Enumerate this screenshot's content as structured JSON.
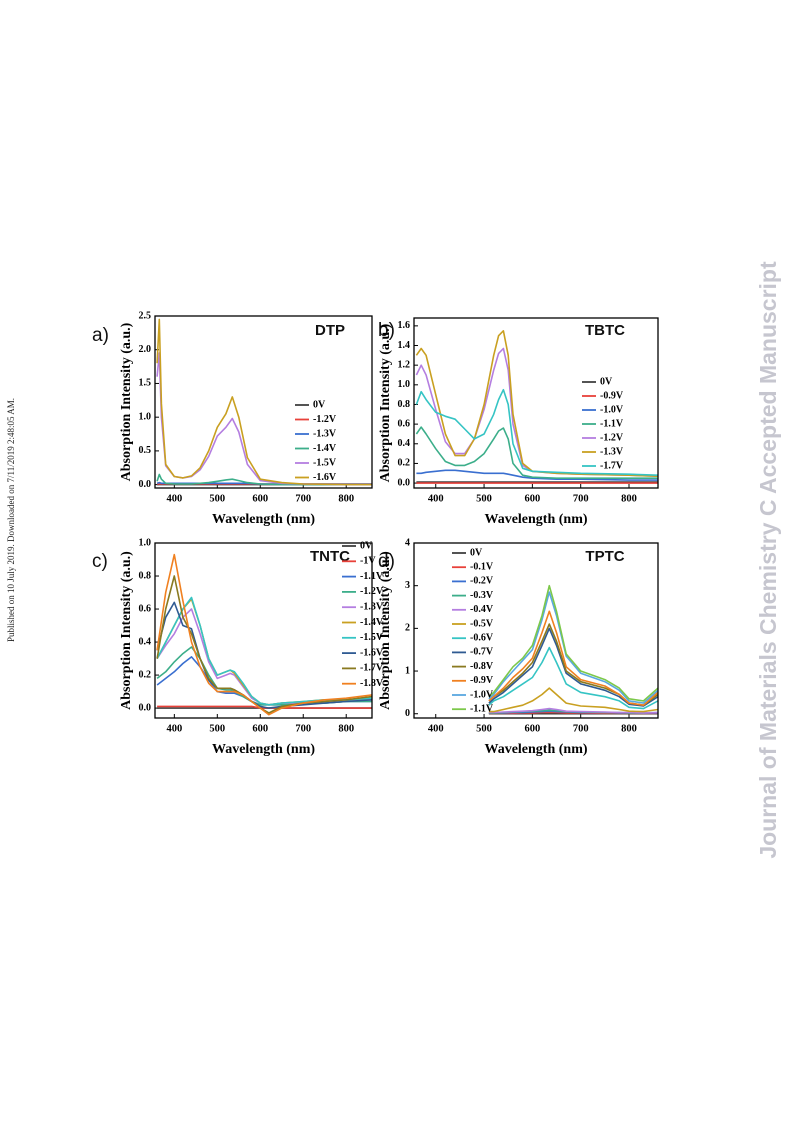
{
  "side_note": "Published on 10 July 2019. Downloaded on 7/11/2019 2:48:05 AM.",
  "watermark": "Journal of Materials Chemistry C Accepted Manuscript",
  "chart_data": [
    {
      "type": "line",
      "label": "a)",
      "title": "DTP",
      "xlabel": "Wavelength (nm)",
      "ylabel": "Absorption Intensity (a.u.)",
      "xlim": [
        355,
        860
      ],
      "xticks": [
        400,
        500,
        600,
        700,
        800
      ],
      "ylim": [
        -0.05,
        2.5
      ],
      "yticks": [
        {
          "value": 0,
          "label": "0.0"
        },
        {
          "value": 0.5,
          "label": "0.5"
        },
        {
          "value": 1,
          "label": "1.0"
        },
        {
          "value": 1.5,
          "label": "1.5"
        },
        {
          "value": 2,
          "label": "2.0"
        },
        {
          "value": 2.5,
          "label": "2.5"
        }
      ],
      "x": [
        360,
        365,
        370,
        380,
        400,
        420,
        440,
        460,
        480,
        500,
        520,
        535,
        550,
        570,
        600,
        650,
        700,
        800,
        860
      ],
      "series": [
        {
          "name": "0V",
          "color": "#404040",
          "values": [
            0,
            0,
            0,
            0,
            0,
            0,
            0,
            0,
            0,
            0,
            0,
            0,
            0,
            0,
            0,
            0,
            0,
            0,
            0
          ]
        },
        {
          "name": "-1.2V",
          "color": "#e8413a",
          "values": [
            0.01,
            0.01,
            0.01,
            0.01,
            0.01,
            0.01,
            0.01,
            0.01,
            0.01,
            0.01,
            0.01,
            0.01,
            0.01,
            0.01,
            0.01,
            0.01,
            0.01,
            0.01,
            0.01
          ]
        },
        {
          "name": "-1.3V",
          "color": "#3a6fd0",
          "values": [
            0.02,
            0.03,
            0.02,
            0.02,
            0.02,
            0.02,
            0.02,
            0.02,
            0.02,
            0.02,
            0.02,
            0.02,
            0.02,
            0.02,
            0.01,
            0.01,
            0.01,
            0.01,
            0.01
          ]
        },
        {
          "name": "-1.4V",
          "color": "#3cae8a",
          "values": [
            0.05,
            0.15,
            0.08,
            0.02,
            0.01,
            0.01,
            0.01,
            0.02,
            0.03,
            0.05,
            0.07,
            0.08,
            0.06,
            0.03,
            0.01,
            0,
            0,
            0,
            0
          ]
        },
        {
          "name": "-1.5V",
          "color": "#b47ee0",
          "values": [
            1.6,
            1.95,
            1.0,
            0.28,
            0.12,
            0.1,
            0.12,
            0.22,
            0.42,
            0.72,
            0.85,
            0.98,
            0.78,
            0.3,
            0.06,
            0.02,
            0.01,
            0,
            0
          ]
        },
        {
          "name": "-1.6V",
          "color": "#c9a021",
          "values": [
            1.8,
            2.45,
            1.2,
            0.3,
            0.12,
            0.1,
            0.13,
            0.25,
            0.5,
            0.85,
            1.05,
            1.3,
            1.0,
            0.4,
            0.08,
            0.03,
            0.01,
            0,
            0
          ]
        }
      ]
    },
    {
      "type": "line",
      "label": "b)",
      "title": "TBTC",
      "xlabel": "Wavelength (nm)",
      "ylabel": "Absorption Intensity (a.u.)",
      "xlim": [
        355,
        860
      ],
      "xticks": [
        400,
        500,
        600,
        700,
        800
      ],
      "ylim": [
        -0.05,
        1.68
      ],
      "yticks": [
        {
          "value": 0,
          "label": "0.0"
        },
        {
          "value": 0.2,
          "label": "0.2"
        },
        {
          "value": 0.4,
          "label": "0.4"
        },
        {
          "value": 0.6,
          "label": "0.6"
        },
        {
          "value": 0.8,
          "label": "0.8"
        },
        {
          "value": 1,
          "label": "1.0"
        },
        {
          "value": 1.2,
          "label": "1.2"
        },
        {
          "value": 1.4,
          "label": "1.4"
        },
        {
          "value": 1.6,
          "label": "1.6"
        }
      ],
      "x": [
        360,
        370,
        380,
        400,
        420,
        440,
        460,
        480,
        500,
        520,
        530,
        540,
        550,
        560,
        580,
        600,
        650,
        700,
        800,
        860
      ],
      "series": [
        {
          "name": "0V",
          "color": "#404040",
          "values": [
            0.01,
            0.01,
            0.01,
            0.01,
            0.01,
            0.01,
            0.01,
            0.01,
            0.01,
            0.01,
            0.01,
            0.01,
            0.01,
            0.01,
            0.01,
            0.01,
            0.01,
            0.01,
            0.01,
            0.01
          ]
        },
        {
          "name": "-0.9V",
          "color": "#e8413a",
          "values": [
            0,
            0,
            0,
            0,
            0,
            0,
            0,
            0,
            0,
            0,
            0,
            0,
            0,
            0,
            0,
            0,
            0,
            0,
            0,
            0
          ]
        },
        {
          "name": "-1.0V",
          "color": "#3a6fd0",
          "values": [
            0.1,
            0.1,
            0.11,
            0.12,
            0.13,
            0.13,
            0.12,
            0.11,
            0.1,
            0.1,
            0.1,
            0.1,
            0.09,
            0.08,
            0.06,
            0.05,
            0.04,
            0.04,
            0.03,
            0.03
          ]
        },
        {
          "name": "-1.1V",
          "color": "#3cae8a",
          "values": [
            0.5,
            0.57,
            0.5,
            0.35,
            0.22,
            0.18,
            0.18,
            0.22,
            0.3,
            0.45,
            0.53,
            0.56,
            0.45,
            0.2,
            0.08,
            0.06,
            0.05,
            0.05,
            0.05,
            0.05
          ]
        },
        {
          "name": "-1.2V",
          "color": "#b47ee0",
          "values": [
            1.1,
            1.2,
            1.1,
            0.75,
            0.42,
            0.3,
            0.3,
            0.45,
            0.75,
            1.15,
            1.32,
            1.37,
            1.15,
            0.6,
            0.18,
            0.12,
            0.1,
            0.09,
            0.08,
            0.07
          ]
        },
        {
          "name": "-1.3V",
          "color": "#c9a021",
          "values": [
            1.3,
            1.37,
            1.3,
            0.9,
            0.5,
            0.28,
            0.28,
            0.45,
            0.8,
            1.3,
            1.5,
            1.55,
            1.3,
            0.7,
            0.2,
            0.12,
            0.1,
            0.09,
            0.08,
            0.07
          ]
        },
        {
          "name": "-1.7V",
          "color": "#35c4c4",
          "values": [
            0.8,
            0.93,
            0.85,
            0.72,
            0.68,
            0.65,
            0.55,
            0.45,
            0.5,
            0.7,
            0.85,
            0.95,
            0.8,
            0.4,
            0.15,
            0.12,
            0.11,
            0.1,
            0.09,
            0.08
          ]
        }
      ]
    },
    {
      "type": "line",
      "label": "c)",
      "title": "TNTC",
      "xlabel": "Wavelength (nm)",
      "ylabel": "Absorption Intensity (a.u.)",
      "xlim": [
        355,
        860
      ],
      "xticks": [
        400,
        500,
        600,
        700,
        800
      ],
      "ylim": [
        -0.06,
        1.0
      ],
      "yticks": [
        {
          "value": 0,
          "label": "0.0"
        },
        {
          "value": 0.2,
          "label": "0.2"
        },
        {
          "value": 0.4,
          "label": "0.4"
        },
        {
          "value": 0.6,
          "label": "0.6"
        },
        {
          "value": 0.8,
          "label": "0.8"
        },
        {
          "value": 1,
          "label": "1.0"
        }
      ],
      "x": [
        360,
        380,
        400,
        420,
        440,
        460,
        480,
        500,
        520,
        530,
        540,
        560,
        580,
        600,
        620,
        650,
        700,
        750,
        800,
        860
      ],
      "series": [
        {
          "name": "0V",
          "color": "#404040",
          "values": [
            0,
            0,
            0,
            0,
            0,
            0,
            0,
            0,
            0,
            0,
            0,
            0,
            0,
            0,
            0,
            0,
            0,
            0,
            0,
            0
          ]
        },
        {
          "name": "-1V",
          "color": "#e8413a",
          "values": [
            0.01,
            0.01,
            0.01,
            0.01,
            0.01,
            0.01,
            0.01,
            0.01,
            0.01,
            0.01,
            0.01,
            0.01,
            0.01,
            0,
            0,
            0,
            0,
            0,
            0,
            0
          ]
        },
        {
          "name": "-1.1V",
          "color": "#3a6fd0",
          "values": [
            0.14,
            0.18,
            0.22,
            0.27,
            0.31,
            0.25,
            0.17,
            0.1,
            0.09,
            0.09,
            0.09,
            0.07,
            0.04,
            0.02,
            0.02,
            0.02,
            0.03,
            0.03,
            0.04,
            0.04
          ]
        },
        {
          "name": "-1.2V",
          "color": "#3cae8a",
          "values": [
            0.18,
            0.22,
            0.28,
            0.33,
            0.37,
            0.3,
            0.2,
            0.12,
            0.11,
            0.11,
            0.1,
            0.07,
            0.04,
            0.02,
            0.02,
            0.02,
            0.03,
            0.03,
            0.04,
            0.04
          ]
        },
        {
          "name": "-1.3V",
          "color": "#b47ee0",
          "values": [
            0.3,
            0.38,
            0.45,
            0.55,
            0.6,
            0.45,
            0.28,
            0.18,
            0.2,
            0.21,
            0.2,
            0.13,
            0.06,
            0.03,
            0.02,
            0.03,
            0.03,
            0.04,
            0.05,
            0.05
          ]
        },
        {
          "name": "-1.4V",
          "color": "#c9a021",
          "values": [
            0.3,
            0.4,
            0.5,
            0.6,
            0.66,
            0.5,
            0.3,
            0.2,
            0.22,
            0.23,
            0.21,
            0.14,
            0.07,
            0.03,
            0.02,
            0.03,
            0.04,
            0.05,
            0.05,
            0.06
          ]
        },
        {
          "name": "-1.5V",
          "color": "#35c4c4",
          "values": [
            0.3,
            0.4,
            0.5,
            0.6,
            0.67,
            0.5,
            0.3,
            0.2,
            0.22,
            0.23,
            0.22,
            0.15,
            0.07,
            0.03,
            0.02,
            0.03,
            0.04,
            0.05,
            0.05,
            0.06
          ]
        },
        {
          "name": "-1.6V",
          "color": "#2f5a92",
          "values": [
            0.35,
            0.55,
            0.64,
            0.5,
            0.48,
            0.3,
            0.17,
            0.12,
            0.12,
            0.12,
            0.11,
            0.08,
            0.04,
            0.01,
            0,
            0.01,
            0.02,
            0.03,
            0.04,
            0.05
          ]
        },
        {
          "name": "-1.7V",
          "color": "#8a7a20",
          "values": [
            0.3,
            0.6,
            0.8,
            0.55,
            0.45,
            0.3,
            0.18,
            0.12,
            0.12,
            0.12,
            0.11,
            0.08,
            0.04,
            0,
            -0.03,
            0.01,
            0.03,
            0.04,
            0.05,
            0.07
          ]
        },
        {
          "name": "-1.8V",
          "color": "#f08020",
          "values": [
            0.35,
            0.7,
            0.93,
            0.65,
            0.4,
            0.25,
            0.15,
            0.1,
            0.1,
            0.1,
            0.1,
            0.08,
            0.04,
            0,
            -0.04,
            0,
            0.03,
            0.05,
            0.06,
            0.08
          ]
        }
      ]
    },
    {
      "type": "line",
      "label": "d)",
      "title": "TPTC",
      "xlabel": "Wavelength (nm)",
      "ylabel": "Absorption Intensity (a.u.)",
      "xlim": [
        355,
        860
      ],
      "xticks": [
        400,
        500,
        600,
        700,
        800
      ],
      "ylim": [
        -0.1,
        4
      ],
      "yticks": [
        0,
        1,
        2,
        3,
        4
      ],
      "x": [
        510,
        520,
        540,
        560,
        580,
        600,
        620,
        635,
        650,
        670,
        700,
        750,
        780,
        800,
        830,
        860
      ],
      "series": [
        {
          "name": "0V",
          "color": "#404040",
          "values": [
            0,
            0,
            0,
            0,
            0,
            0,
            0,
            0,
            0,
            0,
            0,
            0,
            0,
            0,
            0,
            0
          ]
        },
        {
          "name": "-0.1V",
          "color": "#e8413a",
          "values": [
            0.01,
            0.01,
            0.01,
            0.01,
            0.02,
            0.02,
            0.03,
            0.03,
            0.03,
            0.02,
            0.02,
            0.01,
            0.01,
            0.01,
            0.01,
            0.01
          ]
        },
        {
          "name": "-0.2V",
          "color": "#3a6fd0",
          "values": [
            0.02,
            0.02,
            0.02,
            0.03,
            0.03,
            0.04,
            0.05,
            0.06,
            0.05,
            0.04,
            0.03,
            0.03,
            0.02,
            0.02,
            0.02,
            0.02
          ]
        },
        {
          "name": "-0.3V",
          "color": "#3cae8a",
          "values": [
            0.02,
            0.02,
            0.03,
            0.04,
            0.05,
            0.06,
            0.07,
            0.08,
            0.07,
            0.05,
            0.04,
            0.03,
            0.03,
            0.02,
            0.02,
            0.03
          ]
        },
        {
          "name": "-0.4V",
          "color": "#b47ee0",
          "values": [
            0.03,
            0.03,
            0.04,
            0.05,
            0.06,
            0.07,
            0.1,
            0.12,
            0.1,
            0.06,
            0.05,
            0.04,
            0.03,
            0.03,
            0.02,
            0.03
          ]
        },
        {
          "name": "-0.5V",
          "color": "#c9a021",
          "values": [
            0.05,
            0.05,
            0.1,
            0.15,
            0.2,
            0.3,
            0.45,
            0.6,
            0.45,
            0.25,
            0.18,
            0.15,
            0.1,
            0.06,
            0.05,
            0.1
          ]
        },
        {
          "name": "-0.6V",
          "color": "#35c4c4",
          "values": [
            0.2,
            0.3,
            0.4,
            0.55,
            0.7,
            0.85,
            1.2,
            1.55,
            1.2,
            0.7,
            0.5,
            0.4,
            0.3,
            0.15,
            0.12,
            0.3
          ]
        },
        {
          "name": "-0.7V",
          "color": "#2f5a92",
          "values": [
            0.25,
            0.35,
            0.5,
            0.7,
            0.9,
            1.1,
            1.6,
            2.0,
            1.6,
            0.95,
            0.7,
            0.55,
            0.4,
            0.22,
            0.18,
            0.4
          ]
        },
        {
          "name": "-0.8V",
          "color": "#8a7a20",
          "values": [
            0.3,
            0.4,
            0.55,
            0.75,
            0.95,
            1.2,
            1.7,
            2.1,
            1.7,
            1.0,
            0.75,
            0.6,
            0.45,
            0.25,
            0.2,
            0.45
          ]
        },
        {
          "name": "-0.9V",
          "color": "#f08020",
          "values": [
            0.3,
            0.4,
            0.6,
            0.85,
            1.05,
            1.3,
            1.9,
            2.4,
            1.9,
            1.1,
            0.8,
            0.65,
            0.45,
            0.25,
            0.2,
            0.5
          ]
        },
        {
          "name": "-1.0V",
          "color": "#5aa8e0",
          "values": [
            0.35,
            0.45,
            0.75,
            1.0,
            1.25,
            1.5,
            2.2,
            2.85,
            2.3,
            1.35,
            0.95,
            0.75,
            0.55,
            0.3,
            0.25,
            0.55
          ]
        },
        {
          "name": "-1.1V",
          "color": "#7cc84a",
          "values": [
            0.4,
            0.5,
            0.8,
            1.1,
            1.3,
            1.6,
            2.3,
            3.0,
            2.4,
            1.4,
            1.0,
            0.8,
            0.6,
            0.35,
            0.3,
            0.6
          ]
        }
      ]
    }
  ]
}
